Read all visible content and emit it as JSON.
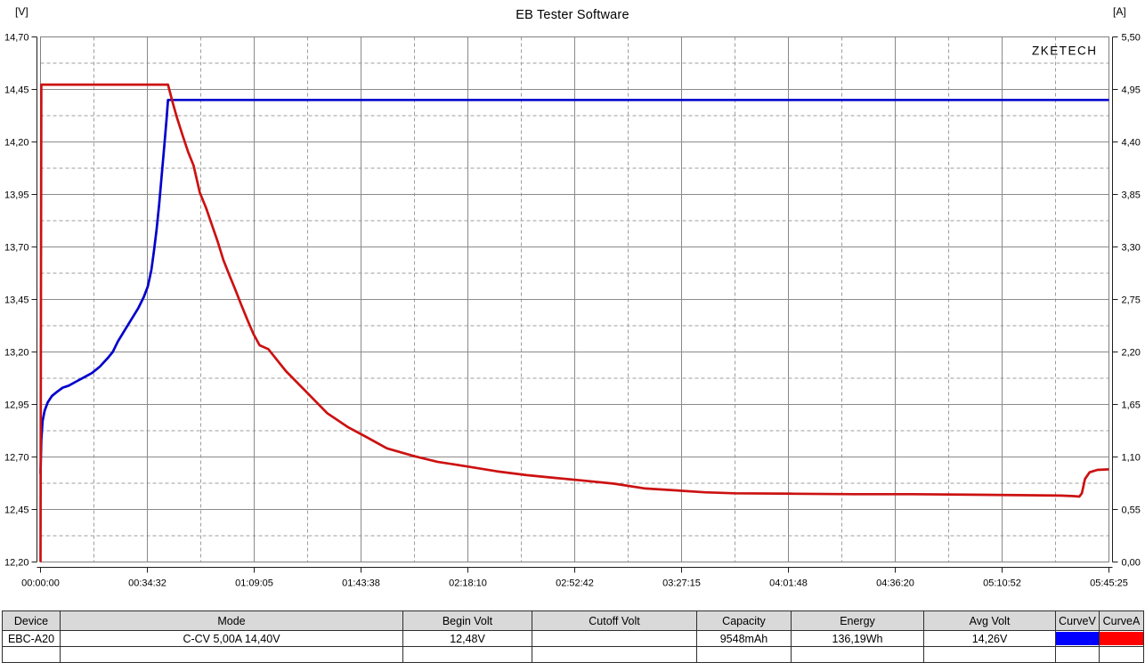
{
  "header": {
    "title": "EB Tester Software"
  },
  "watermark": "ZKETECH",
  "colors": {
    "curve_v": "#0000cc",
    "curve_a": "#cc1111",
    "swatch_v": "#0000ff",
    "swatch_a": "#ff0000",
    "grid_solid": "#8a8a8a",
    "grid_dashed": "#9e9e9e",
    "axis": "#1c1c1c",
    "border": "#808080",
    "watermark": "#b4b4b4"
  },
  "chart_data": {
    "type": "line",
    "title": "EB Tester Software",
    "grid": "on",
    "left_axis": {
      "label": "[V]",
      "min": 12.2,
      "max": 14.7,
      "ticks": [
        "14,70",
        "14,45",
        "14,20",
        "13,95",
        "13,70",
        "13,45",
        "13,20",
        "12,95",
        "12,70",
        "12,45",
        "12,20"
      ]
    },
    "right_axis": {
      "label": "[A]",
      "min": 0.0,
      "max": 5.5,
      "ticks": [
        "5,50",
        "4,95",
        "4,40",
        "3,85",
        "3,30",
        "2,75",
        "2,20",
        "1,65",
        "1,10",
        "0,55",
        "0,00"
      ]
    },
    "x_axis": {
      "min_s": 0,
      "max_s": 20725,
      "ticks": [
        "00:00:00",
        "00:34:32",
        "01:09:05",
        "01:43:38",
        "02:18:10",
        "02:52:42",
        "03:27:15",
        "04:01:48",
        "04:36:20",
        "05:10:52",
        "05:45:25"
      ]
    },
    "series": [
      {
        "name": "CurveV",
        "axis": "left",
        "unit": "V",
        "points": [
          [
            0,
            12.62
          ],
          [
            15,
            12.78
          ],
          [
            40,
            12.87
          ],
          [
            80,
            12.92
          ],
          [
            140,
            12.96
          ],
          [
            220,
            12.99
          ],
          [
            320,
            13.01
          ],
          [
            430,
            13.03
          ],
          [
            550,
            13.04
          ],
          [
            700,
            13.06
          ],
          [
            850,
            13.08
          ],
          [
            1000,
            13.1
          ],
          [
            1150,
            13.13
          ],
          [
            1300,
            13.17
          ],
          [
            1400,
            13.2
          ],
          [
            1500,
            13.25
          ],
          [
            1600,
            13.29
          ],
          [
            1700,
            13.33
          ],
          [
            1800,
            13.37
          ],
          [
            1900,
            13.41
          ],
          [
            2000,
            13.46
          ],
          [
            2080,
            13.51
          ],
          [
            2150,
            13.59
          ],
          [
            2200,
            13.68
          ],
          [
            2250,
            13.78
          ],
          [
            2300,
            13.9
          ],
          [
            2350,
            14.04
          ],
          [
            2400,
            14.18
          ],
          [
            2445,
            14.31
          ],
          [
            2474,
            14.4
          ],
          [
            20725,
            14.4
          ]
        ]
      },
      {
        "name": "CurveA",
        "axis": "right",
        "unit": "A",
        "points": [
          [
            0,
            0.0
          ],
          [
            15,
            5.0
          ],
          [
            2474,
            5.0
          ],
          [
            2560,
            4.82
          ],
          [
            2650,
            4.65
          ],
          [
            2750,
            4.48
          ],
          [
            2860,
            4.3
          ],
          [
            2970,
            4.15
          ],
          [
            3090,
            3.87
          ],
          [
            3210,
            3.71
          ],
          [
            3320,
            3.54
          ],
          [
            3440,
            3.35
          ],
          [
            3550,
            3.16
          ],
          [
            3660,
            3.01
          ],
          [
            3780,
            2.85
          ],
          [
            3890,
            2.7
          ],
          [
            4010,
            2.54
          ],
          [
            4130,
            2.39
          ],
          [
            4250,
            2.27
          ],
          [
            4420,
            2.23
          ],
          [
            4760,
            2.0
          ],
          [
            5160,
            1.78
          ],
          [
            5560,
            1.56
          ],
          [
            5970,
            1.41
          ],
          [
            6320,
            1.31
          ],
          [
            6720,
            1.19
          ],
          [
            7240,
            1.11
          ],
          [
            7700,
            1.05
          ],
          [
            8280,
            1.0
          ],
          [
            8850,
            0.95
          ],
          [
            9430,
            0.91
          ],
          [
            10000,
            0.88
          ],
          [
            10580,
            0.85
          ],
          [
            11130,
            0.82
          ],
          [
            11730,
            0.77
          ],
          [
            12320,
            0.75
          ],
          [
            12890,
            0.73
          ],
          [
            13460,
            0.72
          ],
          [
            14620,
            0.715
          ],
          [
            15780,
            0.71
          ],
          [
            16920,
            0.71
          ],
          [
            18080,
            0.705
          ],
          [
            19000,
            0.7
          ],
          [
            19800,
            0.695
          ],
          [
            20050,
            0.69
          ],
          [
            20150,
            0.685
          ],
          [
            20200,
            0.72
          ],
          [
            20260,
            0.87
          ],
          [
            20350,
            0.94
          ],
          [
            20500,
            0.965
          ],
          [
            20725,
            0.97
          ]
        ]
      }
    ]
  },
  "table": {
    "headers": [
      "Device",
      "Mode",
      "Begin Volt",
      "Cutoff Volt",
      "Capacity",
      "Energy",
      "Avg Volt",
      "CurveV",
      "CurveA"
    ],
    "row": {
      "device": "EBC-A20",
      "mode": "C-CV  5,00A  14,40V",
      "begin_volt": "12,48V",
      "cutoff_volt": "",
      "capacity": "9548mAh",
      "energy": "136,19Wh",
      "avg_volt": "14,26V"
    }
  }
}
